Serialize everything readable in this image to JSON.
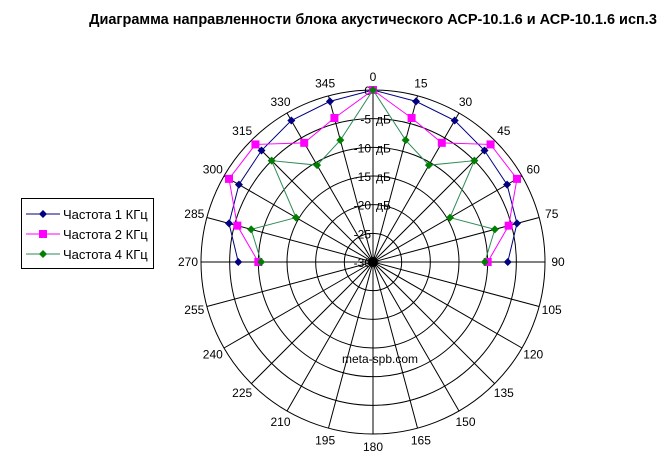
{
  "chart_data": {
    "type": "radar",
    "title": "Диаграмма направленности блока акустического АСР-10.1.6 и АСР-10.1.6 исп.3",
    "categories": [
      "0",
      "15",
      "30",
      "45",
      "60",
      "75",
      "90",
      "105",
      "120",
      "135",
      "150",
      "165",
      "180",
      "195",
      "210",
      "225",
      "240",
      "255",
      "270",
      "285",
      "300",
      "315",
      "330",
      "345"
    ],
    "radial_ticks": [
      "0",
      "-5",
      "-10",
      "-15",
      "-20",
      "-25",
      "-30"
    ],
    "radial_unit": "дБ",
    "rlim": [
      -30,
      0
    ],
    "grid": true,
    "legend": "left",
    "annotation": "meta-spb.com",
    "series": [
      {
        "name": "Частота 1 КГц",
        "color": "#000080",
        "marker": "diamond",
        "values": [
          0,
          -1,
          -1.5,
          -2.5,
          -3,
          -4,
          -6.5,
          null,
          null,
          null,
          null,
          null,
          null,
          null,
          null,
          null,
          null,
          null,
          -6.5,
          -4,
          -3,
          -2.5,
          -1.5,
          -1
        ]
      },
      {
        "name": "Частота 2 КГц",
        "color": "#FF00FF",
        "marker": "square",
        "values": [
          0,
          -4,
          -6,
          -1,
          -1,
          -5.5,
          -10,
          null,
          null,
          null,
          null,
          null,
          null,
          null,
          null,
          null,
          null,
          null,
          -10,
          -5.5,
          -1,
          -1,
          -6,
          -4
        ]
      },
      {
        "name": "Частота 4 КГц",
        "color": "#2E8B57",
        "marker": "diamond",
        "values": [
          0,
          -8,
          -10.5,
          -5,
          -14.5,
          -8,
          -10.5,
          null,
          null,
          null,
          null,
          null,
          null,
          null,
          null,
          null,
          null,
          null,
          -10.5,
          -8,
          -14.5,
          -5,
          -10.5,
          -8
        ]
      }
    ]
  }
}
